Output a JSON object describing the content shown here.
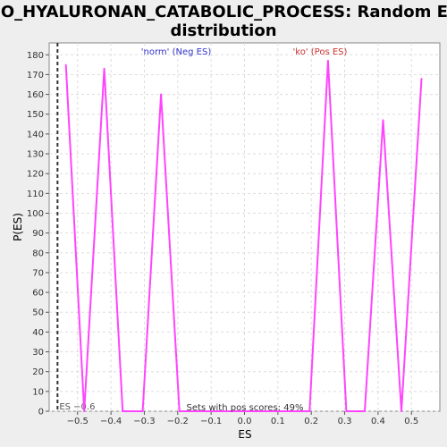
{
  "chart_data": {
    "type": "line",
    "title_line1": "GO_HYALURONAN_CATABOLIC_PROCESS: Random ES",
    "title_line2": "distribution",
    "xlabel": "ES",
    "ylabel": "P(ES)",
    "xlim": [
      -0.585,
      0.585
    ],
    "ylim": [
      0,
      186
    ],
    "x_ticks": [
      -0.5,
      -0.4,
      -0.3,
      -0.2,
      -0.1,
      0.0,
      0.1,
      0.2,
      0.3,
      0.4,
      0.5
    ],
    "x_tick_labels": [
      "−0.5",
      "−0.4",
      "−0.3",
      "−0.2",
      "−0.1",
      "0.0",
      "0.1",
      "0.2",
      "0.3",
      "0.4",
      "0.5"
    ],
    "y_ticks": [
      0,
      10,
      20,
      30,
      40,
      50,
      60,
      70,
      80,
      90,
      100,
      110,
      120,
      130,
      140,
      150,
      160,
      170,
      180
    ],
    "grid": true,
    "series": [
      {
        "color": "#ff44ff",
        "x": [
          -0.535,
          -0.48,
          -0.42,
          -0.365,
          -0.305,
          -0.25,
          -0.195,
          0.195,
          0.25,
          0.305,
          0.36,
          0.415,
          0.47,
          0.53
        ],
        "y": [
          175,
          0,
          173,
          0,
          0,
          160,
          0,
          0,
          177,
          0,
          0,
          147,
          0,
          168
        ]
      }
    ],
    "es_line": {
      "x": -0.56,
      "label": "ES −0.6"
    },
    "annotations": {
      "neg_label": "'norm' (Neg ES)",
      "pos_label": "'ko' (Pos ES)",
      "pos_scores": "Sets with pos scores: 49%"
    },
    "colors": {
      "line": "#ff44ff",
      "neg_label": "#3333cc",
      "pos_label": "#cc3333",
      "grid": "#dddddd"
    }
  }
}
